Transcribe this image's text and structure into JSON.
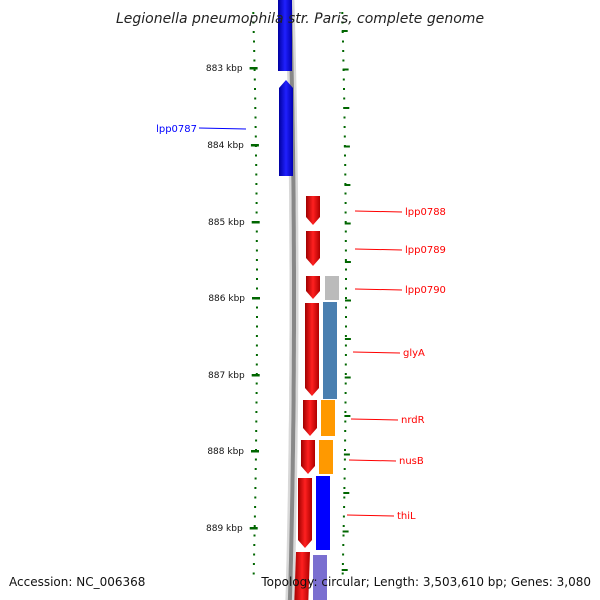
{
  "title": "Legionella pneumophila str. Paris, complete genome",
  "footer": {
    "accession": "Accession: NC_006368",
    "summary": "Topology: circular; Length: 3,503,610 bp; Genes: 3,080"
  },
  "ticks": [
    "883 kbp",
    "884 kbp",
    "885 kbp",
    "886 kbp",
    "887 kbp",
    "888 kbp",
    "889 kbp"
  ],
  "genes": [
    {
      "name": "lpp0787",
      "strand": "+",
      "color": "#0000ff"
    },
    {
      "name": "lpp0788",
      "strand": "-",
      "color": "#ff0000"
    },
    {
      "name": "lpp0789",
      "strand": "-",
      "color": "#ff0000"
    },
    {
      "name": "lpp0790",
      "strand": "-",
      "color": "#ff0000"
    },
    {
      "name": "glyA",
      "strand": "-",
      "color": "#ff0000"
    },
    {
      "name": "nrdR",
      "strand": "-",
      "color": "#ff0000"
    },
    {
      "name": "nusB",
      "strand": "-",
      "color": "#ff0000"
    },
    {
      "name": "thiL",
      "strand": "-",
      "color": "#ff0000"
    }
  ],
  "colors": {
    "forward": "#0000ff",
    "reverse": "#ff0000",
    "backbone": "#888888",
    "tick": "#006600",
    "cog_blue": "#4a7fb0",
    "cog_orange": "#ff9900",
    "cog_gray": "#bbbbbb",
    "cog_darkblue": "#0000ff",
    "cog_purple": "#7a6fd0"
  }
}
